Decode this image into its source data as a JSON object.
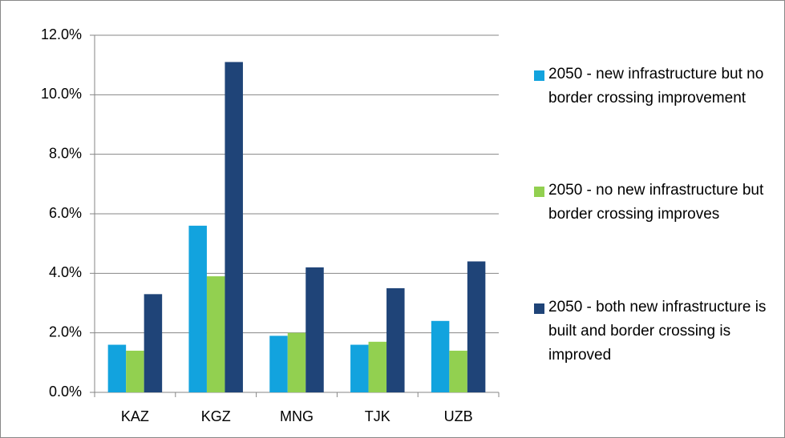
{
  "chart_data": {
    "type": "bar",
    "categories": [
      "KAZ",
      "KGZ",
      "MNG",
      "TJK",
      "UZB"
    ],
    "series": [
      {
        "name": "2050 - new infrastructure but no border crossing improvement",
        "color": "#12a3de",
        "values": [
          1.6,
          5.6,
          1.9,
          1.6,
          2.4
        ]
      },
      {
        "name": "2050 - no new infrastructure but border crossing improves",
        "color": "#92d050",
        "values": [
          1.4,
          3.9,
          2.0,
          1.7,
          1.4
        ]
      },
      {
        "name": "2050 - both new infrastructure is  built and border crossing is improved",
        "color": "#1f4478",
        "values": [
          3.3,
          11.1,
          4.2,
          3.5,
          4.4
        ]
      }
    ],
    "ylim": [
      0,
      12
    ],
    "yticks": [
      {
        "value": 0,
        "label": "0.0%"
      },
      {
        "value": 2,
        "label": "2.0%"
      },
      {
        "value": 4,
        "label": "4.0%"
      },
      {
        "value": 6,
        "label": "6.0%"
      },
      {
        "value": 8,
        "label": "8.0%"
      },
      {
        "value": 10,
        "label": "10.0%"
      },
      {
        "value": 12,
        "label": "12.0%"
      }
    ],
    "grid": true,
    "legend": "right"
  }
}
